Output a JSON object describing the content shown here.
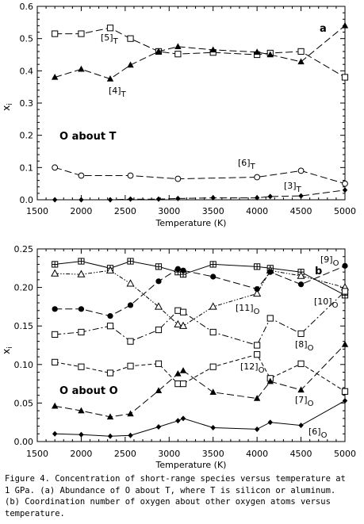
{
  "caption": {
    "line1": "Figure 4. Concentration of short-range species versus temperature at",
    "line2": "1 GPa. (a) Abundance of O about T, where T is silicon or aluminum.",
    "line3": "(b) Coordination number of oxygen about other oxygen atoms versus",
    "line4": "temperature."
  },
  "chart_data": [
    {
      "type": "line",
      "panel_letter": "a",
      "panel_title": "O about T",
      "xlabel": "Temperature (K)",
      "ylabel": "x_i",
      "xlim": [
        1500,
        5000
      ],
      "ylim": [
        0,
        0.6
      ],
      "xticks": [
        1500,
        2000,
        2500,
        3000,
        3500,
        4000,
        4500,
        5000
      ],
      "yticks": [
        0,
        0.1,
        0.2,
        0.3,
        0.4,
        0.5,
        0.6
      ],
      "grid": false,
      "series": [
        {
          "name": "[5]T",
          "label_main": "[5]",
          "label_sub": "T",
          "marker": "square",
          "dash": "long",
          "x": [
            1700,
            2000,
            2330,
            2560,
            2880,
            3100,
            3500,
            4000,
            4150,
            4500,
            5000
          ],
          "y": [
            0.515,
            0.515,
            0.533,
            0.5,
            0.46,
            0.452,
            0.457,
            0.45,
            0.455,
            0.46,
            0.38
          ]
        },
        {
          "name": "[4]T",
          "label_main": "[4]",
          "label_sub": "T",
          "marker": "triangle-filled",
          "dash": "long",
          "x": [
            1700,
            2000,
            2330,
            2560,
            2880,
            3100,
            3500,
            4000,
            4150,
            4500,
            5000
          ],
          "y": [
            0.38,
            0.405,
            0.375,
            0.418,
            0.46,
            0.475,
            0.465,
            0.458,
            0.45,
            0.428,
            0.54
          ]
        },
        {
          "name": "[6]T",
          "label_main": "[6]",
          "label_sub": "T",
          "marker": "circle-open",
          "dash": "long",
          "x": [
            1700,
            2000,
            2560,
            3100,
            4000,
            4500,
            5000
          ],
          "y": [
            0.1,
            0.075,
            0.075,
            0.065,
            0.07,
            0.09,
            0.05
          ]
        },
        {
          "name": "[3]T",
          "label_main": "[3]",
          "label_sub": "T",
          "marker": "diamond-filled",
          "dash": "long",
          "x": [
            1700,
            2000,
            2330,
            2560,
            2880,
            3100,
            3500,
            4000,
            4150,
            4500,
            5000
          ],
          "y": [
            0.0,
            0.0,
            0.0,
            0.002,
            0.002,
            0.004,
            0.006,
            0.006,
            0.01,
            0.012,
            0.03
          ]
        }
      ]
    },
    {
      "type": "line",
      "panel_letter": "b",
      "panel_title": "O about O",
      "xlabel": "Temperature (K)",
      "ylabel": "x_i",
      "xlim": [
        1500,
        5000
      ],
      "ylim": [
        0,
        0.25
      ],
      "xticks": [
        1500,
        2000,
        2500,
        3000,
        3500,
        4000,
        4500,
        5000
      ],
      "yticks": [
        0,
        0.05,
        0.1,
        0.15,
        0.2,
        0.25
      ],
      "grid": false,
      "series": [
        {
          "name": "[9]O",
          "label_main": "[9]",
          "label_sub": "O",
          "marker": "square-plus",
          "dash": "solid",
          "x": [
            1700,
            2000,
            2330,
            2560,
            2880,
            3100,
            3160,
            3500,
            4000,
            4150,
            4500,
            5000
          ],
          "y": [
            0.23,
            0.234,
            0.225,
            0.234,
            0.227,
            0.22,
            0.217,
            0.23,
            0.227,
            0.225,
            0.22,
            0.19
          ]
        },
        {
          "name": "[11]O",
          "label_main": "[11]",
          "label_sub": "O",
          "marker": "triangle-open",
          "dash": "dotdot",
          "x": [
            1700,
            2000,
            2330,
            2560,
            2880,
            3100,
            3160,
            3500,
            4000,
            4150,
            4500,
            5000
          ],
          "y": [
            0.218,
            0.217,
            0.222,
            0.205,
            0.175,
            0.152,
            0.15,
            0.175,
            0.192,
            0.222,
            0.215,
            0.2
          ]
        },
        {
          "name": "[10]O",
          "label_main": "[10]",
          "label_sub": "O",
          "marker": "circle-filled",
          "dash": "long",
          "x": [
            1700,
            2000,
            2330,
            2560,
            2880,
            3100,
            3160,
            3500,
            4000,
            4150,
            4500,
            5000
          ],
          "y": [
            0.172,
            0.172,
            0.163,
            0.177,
            0.208,
            0.224,
            0.222,
            0.214,
            0.198,
            0.22,
            0.204,
            0.228
          ]
        },
        {
          "name": "[8]O",
          "label_main": "[8]",
          "label_sub": "O",
          "marker": "square",
          "dash": "dashdot",
          "x": [
            1700,
            2000,
            2330,
            2560,
            2880,
            3100,
            3160,
            3500,
            4000,
            4150,
            4500,
            5000
          ],
          "y": [
            0.139,
            0.142,
            0.15,
            0.13,
            0.145,
            0.17,
            0.168,
            0.142,
            0.125,
            0.16,
            0.14,
            0.195
          ]
        },
        {
          "name": "[12]O",
          "label_main": "[12]",
          "label_sub": "O",
          "marker": "square",
          "dash": "short",
          "x": [
            1700,
            2000,
            2330,
            2560,
            2880,
            3100,
            3160,
            3500,
            4000,
            4150,
            4500,
            5000
          ],
          "y": [
            0.103,
            0.097,
            0.089,
            0.098,
            0.101,
            0.075,
            0.075,
            0.097,
            0.113,
            0.082,
            0.101,
            0.065
          ]
        },
        {
          "name": "[7]O",
          "label_main": "[7]",
          "label_sub": "O",
          "marker": "triangle-filled",
          "dash": "long",
          "x": [
            1700,
            2000,
            2330,
            2560,
            2880,
            3100,
            3160,
            3500,
            4000,
            4150,
            4500,
            5000
          ],
          "y": [
            0.046,
            0.04,
            0.032,
            0.036,
            0.066,
            0.088,
            0.092,
            0.064,
            0.056,
            0.078,
            0.067,
            0.126
          ]
        },
        {
          "name": "[6]O",
          "label_main": "[6]",
          "label_sub": "O",
          "marker": "diamond-filled",
          "dash": "solid",
          "x": [
            1700,
            2000,
            2330,
            2560,
            2880,
            3100,
            3160,
            3500,
            4000,
            4150,
            4500,
            5000
          ],
          "y": [
            0.01,
            0.009,
            0.007,
            0.008,
            0.019,
            0.027,
            0.03,
            0.018,
            0.016,
            0.025,
            0.021,
            0.053
          ]
        }
      ]
    }
  ]
}
